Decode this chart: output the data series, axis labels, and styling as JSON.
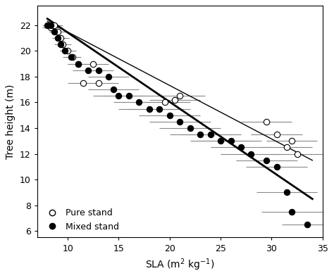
{
  "pure_x": [
    8.3,
    8.7,
    9.0,
    9.3,
    9.5,
    10.0,
    10.5,
    11.0,
    11.5,
    12.5,
    13.0,
    19.5,
    20.5,
    21.0,
    29.5,
    30.5,
    31.5,
    32.0,
    32.5
  ],
  "pure_y": [
    21.8,
    22.0,
    21.5,
    21.0,
    20.5,
    20.0,
    19.5,
    19.0,
    17.5,
    19.0,
    17.5,
    16.0,
    16.2,
    16.5,
    14.5,
    13.5,
    12.5,
    13.0,
    12.0
  ],
  "pure_xerr": [
    0.8,
    0.8,
    0.8,
    0.8,
    0.8,
    0.8,
    0.8,
    1.0,
    1.5,
    1.5,
    2.0,
    2.5,
    2.5,
    2.5,
    2.5,
    2.5,
    2.5,
    2.5,
    2.5
  ],
  "mixed_x": [
    8.0,
    8.3,
    8.7,
    9.0,
    9.3,
    9.7,
    10.3,
    11.0,
    12.0,
    13.0,
    14.0,
    14.5,
    15.0,
    16.0,
    17.0,
    18.0,
    19.0,
    20.0,
    21.0,
    22.0,
    23.0,
    24.0,
    25.0,
    26.0,
    27.0,
    28.0,
    29.5,
    30.5,
    31.5,
    32.0,
    33.5
  ],
  "mixed_y": [
    22.0,
    22.0,
    21.5,
    21.0,
    20.5,
    20.0,
    19.5,
    19.0,
    18.5,
    18.5,
    18.0,
    17.0,
    16.5,
    16.5,
    16.0,
    15.5,
    15.5,
    15.0,
    14.5,
    14.0,
    13.5,
    13.5,
    13.0,
    13.0,
    12.5,
    12.0,
    11.5,
    11.0,
    9.0,
    7.5,
    6.5
  ],
  "mixed_xerr": [
    0.5,
    0.5,
    0.5,
    0.5,
    0.5,
    0.5,
    0.8,
    1.0,
    1.5,
    1.5,
    2.0,
    2.5,
    2.5,
    2.5,
    2.5,
    3.0,
    3.0,
    3.0,
    3.0,
    3.0,
    3.0,
    3.0,
    3.0,
    3.0,
    3.0,
    3.0,
    3.0,
    3.0,
    3.0,
    3.0,
    2.5
  ],
  "pure_line_x": [
    8.0,
    34.0
  ],
  "pure_line_y": [
    22.3,
    11.5
  ],
  "mixed_line_x": [
    8.0,
    34.0
  ],
  "mixed_line_y": [
    22.5,
    8.5
  ],
  "xlabel": "SLA (m$^2$ kg$^{-1}$)",
  "ylabel": "Tree height (m)",
  "xlim": [
    7,
    35
  ],
  "ylim": [
    5.5,
    23.5
  ],
  "xticks": [
    10,
    15,
    20,
    25,
    30,
    35
  ],
  "yticks": [
    6,
    8,
    10,
    12,
    14,
    16,
    18,
    20,
    22
  ],
  "legend_pure": "Pure stand",
  "legend_mixed": "Mixed stand",
  "marker_size": 6,
  "line_color_pure": "#000000",
  "line_color_mixed": "#000000",
  "error_color": "#888888",
  "bg_color": "#ffffff"
}
